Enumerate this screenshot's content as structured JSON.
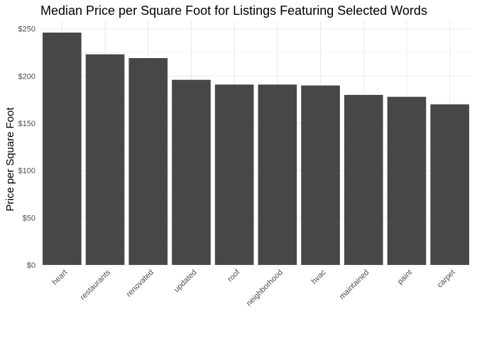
{
  "chart_data": {
    "type": "bar",
    "title": "Median Price per Square Foot for Listings Featuring Selected Words",
    "xlabel": "",
    "ylabel": "Price per Square Foot",
    "categories": [
      "heart",
      "restaurants",
      "renovated",
      "updated",
      "roof",
      "neighborhood",
      "hvac",
      "maintained",
      "paint",
      "carpet"
    ],
    "values": [
      246,
      223,
      219,
      196,
      191,
      191,
      190,
      180,
      178,
      170
    ],
    "ylim": [
      0,
      250
    ],
    "yticks": [
      0,
      50,
      100,
      150,
      200,
      250
    ],
    "ytick_labels": [
      "$0",
      "$50",
      "$100",
      "$150",
      "$200",
      "$250"
    ],
    "bar_color": "#474747",
    "grid": true,
    "legend": "none"
  }
}
